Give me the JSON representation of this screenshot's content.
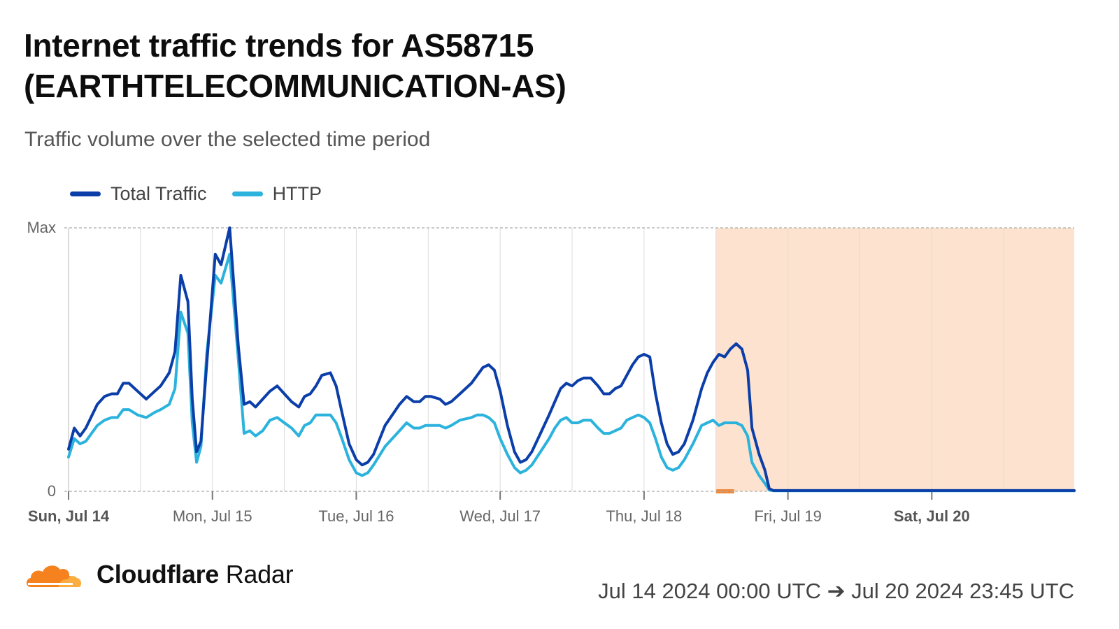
{
  "header": {
    "title": "Internet traffic trends for AS58715 (EARTHTELECOMMUNICATION-AS)",
    "subtitle": "Traffic volume over the selected time period"
  },
  "footer": {
    "brand_bold": "Cloudflare",
    "brand_light": "Radar",
    "date_range": "Jul 14 2024 00:00 UTC ➔ Jul 20 2024 23:45 UTC"
  },
  "colors": {
    "total": "#0b3ea8",
    "http": "#2bb3dd",
    "outage_fill": "#fde3cf",
    "outage_stroke": "#f08a3a",
    "grid": "#dcdcdc"
  },
  "chart_data": {
    "type": "line",
    "ylabels": [
      "Max",
      "0"
    ],
    "ylim": [
      0,
      100
    ],
    "xticks": [
      {
        "day": 0,
        "label": "Sun, Jul 14",
        "bold": true
      },
      {
        "day": 1,
        "label": "Mon, Jul 15",
        "bold": false
      },
      {
        "day": 2,
        "label": "Tue, Jul 16",
        "bold": false
      },
      {
        "day": 3,
        "label": "Wed, Jul 17",
        "bold": false
      },
      {
        "day": 4,
        "label": "Thu, Jul 18",
        "bold": false
      },
      {
        "day": 5,
        "label": "Fri, Jul 19",
        "bold": false
      },
      {
        "day": 6,
        "label": "Sat, Jul 20",
        "bold": true
      }
    ],
    "xlim": [
      0,
      6.99
    ],
    "outage_range": [
      4.5,
      6.99
    ],
    "series": [
      {
        "name": "Total Traffic",
        "key": "total",
        "points": [
          [
            0,
            16
          ],
          [
            0.04,
            24
          ],
          [
            0.08,
            21
          ],
          [
            0.12,
            24
          ],
          [
            0.2,
            33
          ],
          [
            0.25,
            36
          ],
          [
            0.3,
            37
          ],
          [
            0.34,
            37
          ],
          [
            0.38,
            41
          ],
          [
            0.42,
            41
          ],
          [
            0.48,
            38
          ],
          [
            0.54,
            35
          ],
          [
            0.6,
            38
          ],
          [
            0.64,
            40
          ],
          [
            0.7,
            45
          ],
          [
            0.74,
            53
          ],
          [
            0.78,
            82
          ],
          [
            0.83,
            72
          ],
          [
            0.86,
            35
          ],
          [
            0.89,
            15
          ],
          [
            0.92,
            19
          ],
          [
            0.96,
            48
          ],
          [
            1.02,
            90
          ],
          [
            1.06,
            86
          ],
          [
            1.12,
            100
          ],
          [
            1.18,
            55
          ],
          [
            1.22,
            33
          ],
          [
            1.26,
            34
          ],
          [
            1.3,
            32
          ],
          [
            1.35,
            35
          ],
          [
            1.4,
            38
          ],
          [
            1.45,
            40
          ],
          [
            1.5,
            37
          ],
          [
            1.55,
            34
          ],
          [
            1.6,
            32
          ],
          [
            1.64,
            36
          ],
          [
            1.68,
            37
          ],
          [
            1.72,
            40
          ],
          [
            1.76,
            44
          ],
          [
            1.82,
            45
          ],
          [
            1.86,
            40
          ],
          [
            1.9,
            30
          ],
          [
            1.95,
            18
          ],
          [
            2.0,
            12
          ],
          [
            2.04,
            10
          ],
          [
            2.08,
            11
          ],
          [
            2.12,
            14
          ],
          [
            2.2,
            25
          ],
          [
            2.25,
            29
          ],
          [
            2.3,
            33
          ],
          [
            2.35,
            36
          ],
          [
            2.4,
            34
          ],
          [
            2.44,
            34
          ],
          [
            2.48,
            36
          ],
          [
            2.52,
            36
          ],
          [
            2.58,
            35
          ],
          [
            2.62,
            33
          ],
          [
            2.66,
            34
          ],
          [
            2.72,
            37
          ],
          [
            2.8,
            41
          ],
          [
            2.84,
            44
          ],
          [
            2.88,
            47
          ],
          [
            2.92,
            48
          ],
          [
            2.96,
            46
          ],
          [
            3.0,
            38
          ],
          [
            3.05,
            25
          ],
          [
            3.1,
            15
          ],
          [
            3.14,
            11
          ],
          [
            3.18,
            12
          ],
          [
            3.22,
            15
          ],
          [
            3.28,
            22
          ],
          [
            3.34,
            29
          ],
          [
            3.38,
            34
          ],
          [
            3.42,
            39
          ],
          [
            3.46,
            41
          ],
          [
            3.5,
            40
          ],
          [
            3.54,
            42
          ],
          [
            3.58,
            43
          ],
          [
            3.63,
            43
          ],
          [
            3.68,
            40
          ],
          [
            3.72,
            37
          ],
          [
            3.76,
            37
          ],
          [
            3.8,
            39
          ],
          [
            3.84,
            40
          ],
          [
            3.88,
            44
          ],
          [
            3.92,
            48
          ],
          [
            3.96,
            51
          ],
          [
            4.0,
            52
          ],
          [
            4.04,
            51
          ],
          [
            4.08,
            37
          ],
          [
            4.12,
            26
          ],
          [
            4.16,
            18
          ],
          [
            4.2,
            14
          ],
          [
            4.24,
            15
          ],
          [
            4.28,
            18
          ],
          [
            4.34,
            27
          ],
          [
            4.4,
            39
          ],
          [
            4.44,
            45
          ],
          [
            4.48,
            49
          ],
          [
            4.52,
            52
          ],
          [
            4.56,
            51
          ],
          [
            4.6,
            54
          ],
          [
            4.64,
            56
          ],
          [
            4.68,
            54
          ],
          [
            4.72,
            46
          ],
          [
            4.75,
            24
          ],
          [
            4.8,
            14
          ],
          [
            4.84,
            8
          ],
          [
            4.87,
            1
          ],
          [
            4.9,
            0.3
          ],
          [
            5.0,
            0.3
          ],
          [
            6.99,
            0.3
          ]
        ]
      },
      {
        "name": "HTTP",
        "key": "http",
        "points": [
          [
            0,
            13
          ],
          [
            0.04,
            20
          ],
          [
            0.08,
            18
          ],
          [
            0.12,
            19
          ],
          [
            0.2,
            25
          ],
          [
            0.25,
            27
          ],
          [
            0.3,
            28
          ],
          [
            0.34,
            28
          ],
          [
            0.38,
            31
          ],
          [
            0.42,
            31
          ],
          [
            0.48,
            29
          ],
          [
            0.54,
            28
          ],
          [
            0.6,
            30
          ],
          [
            0.64,
            31
          ],
          [
            0.7,
            33
          ],
          [
            0.74,
            39
          ],
          [
            0.78,
            68
          ],
          [
            0.83,
            60
          ],
          [
            0.86,
            26
          ],
          [
            0.89,
            11
          ],
          [
            0.92,
            17
          ],
          [
            0.96,
            52
          ],
          [
            1.02,
            82
          ],
          [
            1.06,
            79
          ],
          [
            1.12,
            90
          ],
          [
            1.18,
            50
          ],
          [
            1.22,
            22
          ],
          [
            1.26,
            23
          ],
          [
            1.3,
            21
          ],
          [
            1.35,
            23
          ],
          [
            1.4,
            27
          ],
          [
            1.45,
            28
          ],
          [
            1.5,
            26
          ],
          [
            1.55,
            24
          ],
          [
            1.6,
            21
          ],
          [
            1.64,
            25
          ],
          [
            1.68,
            26
          ],
          [
            1.72,
            29
          ],
          [
            1.76,
            29
          ],
          [
            1.82,
            29
          ],
          [
            1.86,
            26
          ],
          [
            1.9,
            20
          ],
          [
            1.95,
            12
          ],
          [
            2.0,
            7
          ],
          [
            2.04,
            6
          ],
          [
            2.08,
            7
          ],
          [
            2.12,
            10
          ],
          [
            2.2,
            17
          ],
          [
            2.25,
            20
          ],
          [
            2.3,
            23
          ],
          [
            2.35,
            26
          ],
          [
            2.4,
            24
          ],
          [
            2.44,
            24
          ],
          [
            2.48,
            25
          ],
          [
            2.52,
            25
          ],
          [
            2.58,
            25
          ],
          [
            2.62,
            24
          ],
          [
            2.66,
            25
          ],
          [
            2.72,
            27
          ],
          [
            2.8,
            28
          ],
          [
            2.84,
            29
          ],
          [
            2.88,
            29
          ],
          [
            2.92,
            28
          ],
          [
            2.96,
            26
          ],
          [
            3.0,
            20
          ],
          [
            3.05,
            14
          ],
          [
            3.1,
            9
          ],
          [
            3.14,
            7
          ],
          [
            3.18,
            8
          ],
          [
            3.22,
            10
          ],
          [
            3.28,
            15
          ],
          [
            3.34,
            20
          ],
          [
            3.38,
            24
          ],
          [
            3.42,
            27
          ],
          [
            3.46,
            28
          ],
          [
            3.5,
            26
          ],
          [
            3.54,
            26
          ],
          [
            3.58,
            27
          ],
          [
            3.63,
            27
          ],
          [
            3.68,
            24
          ],
          [
            3.72,
            22
          ],
          [
            3.76,
            22
          ],
          [
            3.8,
            23
          ],
          [
            3.84,
            24
          ],
          [
            3.88,
            27
          ],
          [
            3.92,
            28
          ],
          [
            3.96,
            29
          ],
          [
            4.0,
            28
          ],
          [
            4.04,
            26
          ],
          [
            4.08,
            20
          ],
          [
            4.12,
            13
          ],
          [
            4.16,
            9
          ],
          [
            4.2,
            8
          ],
          [
            4.24,
            9
          ],
          [
            4.28,
            12
          ],
          [
            4.34,
            18
          ],
          [
            4.4,
            25
          ],
          [
            4.44,
            26
          ],
          [
            4.48,
            27
          ],
          [
            4.52,
            25
          ],
          [
            4.56,
            26
          ],
          [
            4.6,
            26
          ],
          [
            4.64,
            26
          ],
          [
            4.68,
            25
          ],
          [
            4.72,
            21
          ],
          [
            4.75,
            11
          ],
          [
            4.8,
            6
          ],
          [
            4.84,
            3
          ],
          [
            4.87,
            0.5
          ],
          [
            4.9,
            0.2
          ],
          [
            5.0,
            0.2
          ],
          [
            6.99,
            0.2
          ]
        ]
      }
    ]
  }
}
